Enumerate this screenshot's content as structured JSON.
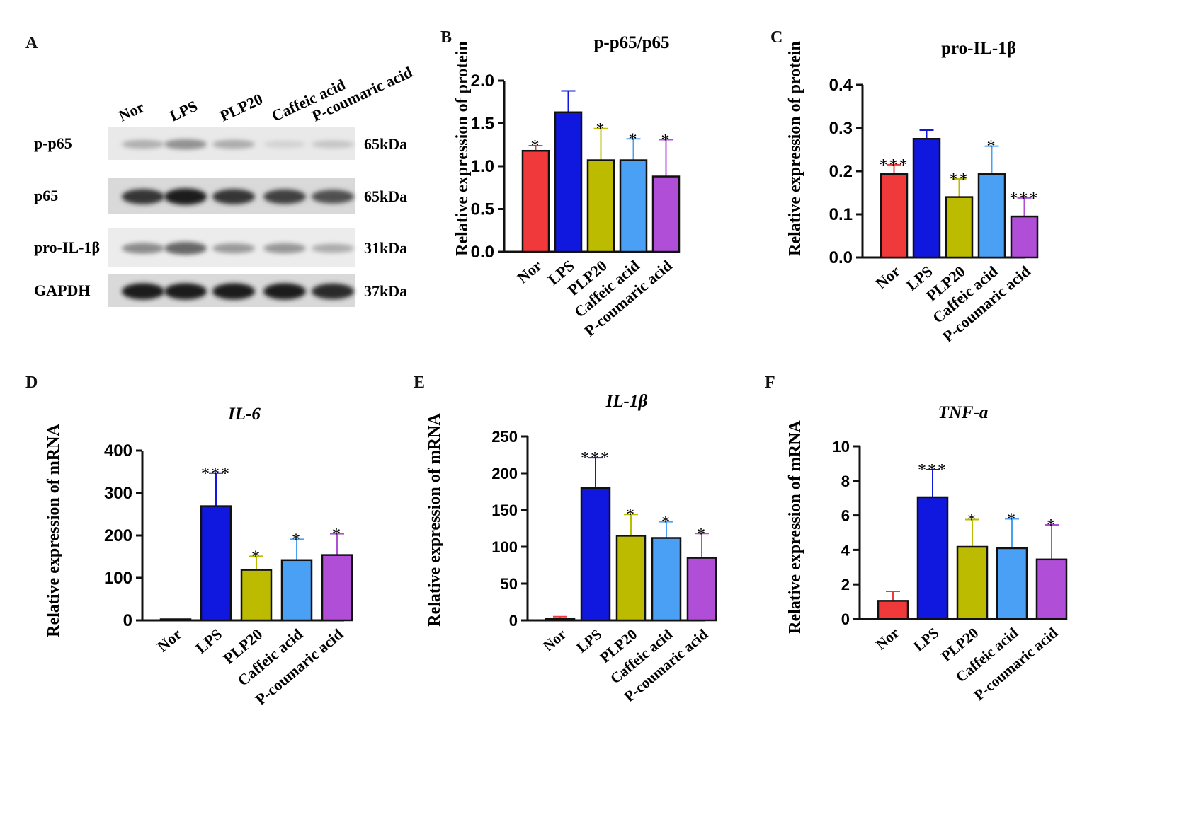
{
  "panel_labels": {
    "a": "A",
    "b": "B",
    "c": "C",
    "d": "D",
    "e": "E",
    "f": "F"
  },
  "blot": {
    "lanes": [
      "Nor",
      "LPS",
      "PLP20",
      "Caffeic acid",
      "P-coumaric acid"
    ],
    "rows": [
      {
        "label": "p-p65",
        "size": "65kDa",
        "intensity": [
          0.28,
          0.42,
          0.3,
          0.12,
          0.18
        ]
      },
      {
        "label": "p65",
        "size": "65kDa",
        "intensity": [
          0.85,
          0.95,
          0.85,
          0.8,
          0.72
        ]
      },
      {
        "label": "pro-IL-1β",
        "size": "31kDa",
        "intensity": [
          0.45,
          0.62,
          0.38,
          0.4,
          0.3
        ]
      },
      {
        "label": "GAPDH",
        "size": "37kDa",
        "intensity": [
          0.95,
          0.95,
          0.95,
          0.95,
          0.9
        ]
      }
    ]
  },
  "colors": [
    "#f0393b",
    "#1018e0",
    "#bcbb00",
    "#4aa0f5",
    "#b04ed8"
  ],
  "chart_data": [
    {
      "id": "B",
      "type": "bar",
      "title": "p-p65/p65",
      "title_italic": false,
      "ylabel": "Relative expression of protein",
      "categories": [
        "Nor",
        "LPS",
        "PLP20",
        "Caffeic acid",
        "P-coumaric acid"
      ],
      "values": [
        1.18,
        1.63,
        1.07,
        1.07,
        0.88
      ],
      "errors": [
        0.06,
        0.25,
        0.37,
        0.25,
        0.43
      ],
      "significance": [
        "*",
        "",
        "*",
        "*",
        "*"
      ],
      "ylim": [
        0,
        2.0
      ],
      "yticks": [
        "0.0",
        "0.5",
        "1.0",
        "1.5",
        "2.0"
      ],
      "ytick_values": [
        0,
        0.5,
        1.0,
        1.5,
        2.0
      ]
    },
    {
      "id": "C",
      "type": "bar",
      "title": "pro-IL-1β",
      "title_italic": false,
      "ylabel": "Relative expression of protein",
      "categories": [
        "Nor",
        "LPS",
        "PLP20",
        "Caffeic acid",
        "P-coumaric acid"
      ],
      "values": [
        0.193,
        0.275,
        0.14,
        0.193,
        0.095
      ],
      "errors": [
        0.022,
        0.02,
        0.042,
        0.065,
        0.043
      ],
      "significance": [
        "***",
        "",
        "**",
        "*",
        "***"
      ],
      "ylim": [
        0,
        0.4
      ],
      "yticks": [
        "0.0",
        "0.1",
        "0.2",
        "0.3",
        "0.4"
      ],
      "ytick_values": [
        0,
        0.1,
        0.2,
        0.3,
        0.4
      ]
    },
    {
      "id": "D",
      "type": "bar",
      "title": "IL-6",
      "title_italic": true,
      "ylabel": "Relative expression of mRNA",
      "categories": [
        "Nor",
        "LPS",
        "PLP20",
        "Caffeic acid",
        "P-coumaric acid"
      ],
      "values": [
        1,
        269,
        119,
        142,
        154
      ],
      "errors": [
        1,
        78,
        32,
        49,
        50
      ],
      "significance": [
        "",
        "***",
        "*",
        "*",
        "*"
      ],
      "ylim": [
        0,
        400
      ],
      "yticks": [
        "0",
        "100",
        "200",
        "300",
        "400"
      ],
      "ytick_values": [
        0,
        100,
        200,
        300,
        400
      ]
    },
    {
      "id": "E",
      "type": "bar",
      "title": "IL-1β",
      "title_italic": true,
      "ylabel": "Relative expression of mRNA",
      "categories": [
        "Nor",
        "LPS",
        "PLP20",
        "Caffeic acid",
        "P-coumaric acid"
      ],
      "values": [
        2,
        180,
        115,
        112,
        85
      ],
      "errors": [
        3,
        41,
        29,
        22,
        33
      ],
      "significance": [
        "",
        "***",
        "*",
        "*",
        "*"
      ],
      "ylim": [
        0,
        250
      ],
      "yticks": [
        "0",
        "50",
        "100",
        "150",
        "200",
        "250"
      ],
      "ytick_values": [
        0,
        50,
        100,
        150,
        200,
        250
      ]
    },
    {
      "id": "F",
      "type": "bar",
      "title": "TNF-a",
      "title_italic": true,
      "ylabel": "Relative expression of mRNA",
      "categories": [
        "Nor",
        "LPS",
        "PLP20",
        "Caffeic acid",
        "P-coumaric acid"
      ],
      "values": [
        1.05,
        7.05,
        4.18,
        4.1,
        3.45
      ],
      "errors": [
        0.55,
        1.6,
        1.58,
        1.7,
        2.0
      ],
      "significance": [
        "",
        "***",
        "*",
        "*",
        "*"
      ],
      "ylim": [
        0,
        10
      ],
      "yticks": [
        "0",
        "2",
        "4",
        "6",
        "8",
        "10"
      ],
      "ytick_values": [
        0,
        2,
        4,
        6,
        8,
        10
      ]
    }
  ]
}
